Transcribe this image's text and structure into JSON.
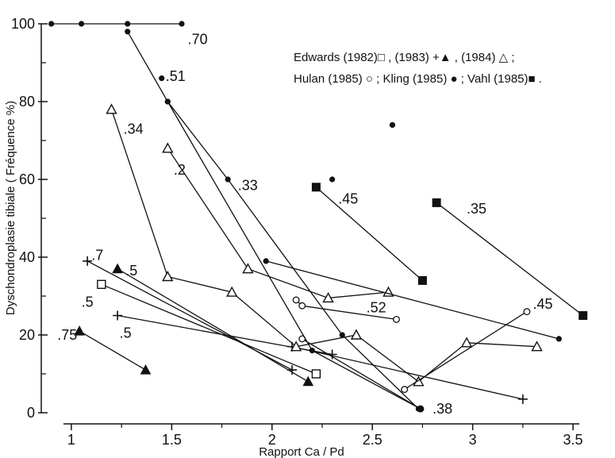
{
  "chart_data": {
    "type": "scatter",
    "xlabel": "Rapport Ca / Pd",
    "ylabel": "Dyschondroplasie tibiale ( Fréquence %)",
    "xlim": [
      0.85,
      3.65
    ],
    "ylim": [
      0,
      100
    ],
    "x_ticks": [
      "1",
      "1.5",
      "2",
      "2.5",
      "3",
      "3.5"
    ],
    "y_ticks": [
      "0",
      "20",
      "40",
      "60",
      "80",
      "100"
    ],
    "grid": false,
    "legend": {
      "placement": "top-right",
      "line1": "Edwards (1982)□ , (1983) +▲ , (1984) △ ;",
      "line2": "Hulan (1985) ○ ; Kling (1985) ● ; Vahl (1985)■ ."
    },
    "series": [
      {
        "study": "Edwards (1982)",
        "marker": "open-square",
        "points": [
          [
            1.15,
            33
          ],
          [
            2.22,
            10
          ]
        ]
      },
      {
        "study": "Edwards (1983)",
        "marker": "plus",
        "points": [
          [
            1.08,
            39
          ],
          [
            2.1,
            11
          ]
        ]
      },
      {
        "study": "Edwards (1983)",
        "marker": "plus",
        "points": [
          [
            1.23,
            25
          ],
          [
            2.3,
            15
          ]
        ]
      },
      {
        "study": "Edwards (1983)",
        "marker": "plus",
        "points": [
          [
            2.1,
            17
          ],
          [
            3.25,
            3.5
          ]
        ]
      },
      {
        "study": "Edwards (1983)",
        "marker": "filled-triangle",
        "points": [
          [
            1.04,
            21
          ],
          [
            1.37,
            11
          ]
        ]
      },
      {
        "study": "Edwards (1983)",
        "marker": "filled-triangle",
        "points": [
          [
            1.23,
            37
          ],
          [
            2.18,
            8
          ]
        ]
      },
      {
        "study": "Edwards (1984)",
        "marker": "open-triangle",
        "points": [
          [
            1.2,
            78
          ],
          [
            1.48,
            35
          ],
          [
            1.8,
            31
          ],
          [
            2.12,
            17
          ],
          [
            2.42,
            20
          ],
          [
            2.73,
            8
          ],
          [
            2.97,
            18
          ],
          [
            3.32,
            17
          ]
        ]
      },
      {
        "study": "Edwards (1984)",
        "marker": "open-triangle",
        "points": [
          [
            1.48,
            68
          ],
          [
            1.88,
            37
          ],
          [
            2.28,
            29.5
          ],
          [
            2.58,
            31
          ]
        ]
      },
      {
        "study": "Hulan (1985)",
        "marker": "open-circle",
        "points": [
          [
            2.12,
            29
          ],
          [
            2.15,
            27.5
          ],
          [
            2.62,
            24
          ]
        ]
      },
      {
        "study": "Hulan (1985)",
        "marker": "open-circle",
        "points": [
          [
            2.15,
            19
          ],
          [
            2.74,
            1
          ]
        ]
      },
      {
        "study": "Hulan (1985)",
        "marker": "open-circle",
        "points": [
          [
            2.66,
            6
          ],
          [
            3.27,
            26
          ]
        ]
      },
      {
        "study": "Kling (1985)",
        "marker": "filled-circle",
        "points": [
          [
            0.9,
            100
          ],
          [
            1.05,
            100
          ],
          [
            1.28,
            100
          ],
          [
            1.55,
            100
          ]
        ]
      },
      {
        "study": "Kling (1985)",
        "marker": "filled-circle",
        "points": [
          [
            1.28,
            98
          ],
          [
            1.48,
            80
          ],
          [
            1.78,
            60
          ],
          [
            2.35,
            20
          ],
          [
            2.73,
            1
          ]
        ]
      },
      {
        "study": "Kling (1985)",
        "marker": "filled-circle",
        "points": [
          [
            1.48,
            80
          ],
          [
            2.2,
            16
          ],
          [
            2.74,
            1
          ]
        ]
      },
      {
        "study": "Kling (1985)",
        "marker": "filled-circle",
        "points": [
          [
            1.97,
            39
          ],
          [
            3.43,
            19
          ]
        ]
      },
      {
        "study": "Kling (1985)",
        "marker": "filled-circle",
        "points": [
          [
            1.45,
            86
          ]
        ]
      },
      {
        "study": "Kling (1985)",
        "marker": "filled-circle",
        "points": [
          [
            2.3,
            60
          ]
        ]
      },
      {
        "study": "Kling (1985)",
        "marker": "filled-circle",
        "points": [
          [
            2.6,
            74
          ]
        ]
      },
      {
        "study": "Vahl (1985)",
        "marker": "filled-square",
        "points": [
          [
            2.22,
            58
          ],
          [
            2.75,
            34
          ]
        ]
      },
      {
        "study": "Vahl (1985)",
        "marker": "filled-square",
        "points": [
          [
            2.82,
            54
          ],
          [
            3.55,
            25
          ]
        ]
      }
    ],
    "annotations": [
      {
        "text": ".70",
        "x": 1.58,
        "y": 96
      },
      {
        "text": ".51",
        "x": 1.47,
        "y": 86.5
      },
      {
        "text": ".34",
        "x": 1.26,
        "y": 73
      },
      {
        "text": ".2",
        "x": 1.51,
        "y": 62.5
      },
      {
        "text": ".33",
        "x": 1.83,
        "y": 58.5
      },
      {
        "text": ".45",
        "x": 2.33,
        "y": 55
      },
      {
        "text": ".35",
        "x": 2.97,
        "y": 52.5
      },
      {
        "text": ".7",
        "x": 1.1,
        "y": 40.5
      },
      {
        "text": ".5",
        "x": 1.27,
        "y": 36.5
      },
      {
        "text": ".5",
        "x": 1.05,
        "y": 28.5
      },
      {
        "text": ".5",
        "x": 1.24,
        "y": 20.5
      },
      {
        "text": ".75",
        "x": 0.93,
        "y": 20
      },
      {
        "text": ".52",
        "x": 2.47,
        "y": 27
      },
      {
        "text": ".45",
        "x": 3.3,
        "y": 28
      },
      {
        "text": ".38",
        "x": 2.8,
        "y": 1
      }
    ]
  }
}
